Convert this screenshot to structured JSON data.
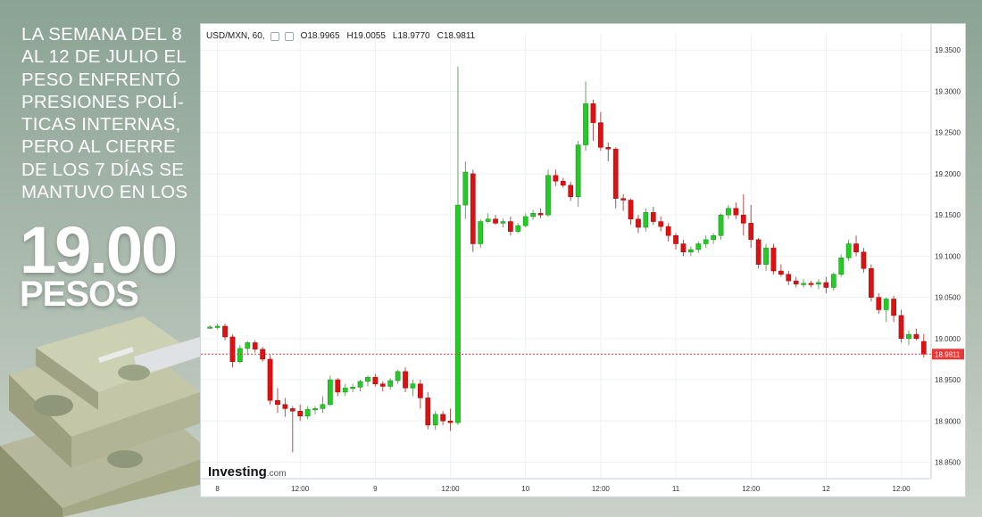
{
  "promo": {
    "lines": [
      "LA SEMANA DEL 8",
      "AL 12 DE JULIO EL",
      "PESO ENFRENTÓ",
      "PRESIONES POLÍ-",
      "TICAS INTERNAS,",
      "PERO AL CIERRE",
      "DE LOS 7 DÍAS SE",
      "MANTUVO EN LOS"
    ],
    "big_number": "19.00",
    "big_unit": "PESOS"
  },
  "chart_header": {
    "symbol": "USD/MXN, 60,",
    "open": "O18.9965",
    "high": "H19.0055",
    "low": "L18.9770",
    "close": "C18.9811"
  },
  "watermark": {
    "brand": "Investing",
    "suffix": ".com"
  },
  "colors": {
    "up": "#22cc22",
    "down": "#dd1111",
    "price_line": "#e8393a",
    "grid": "#eef1f3"
  },
  "chart_data": {
    "type": "candlestick",
    "ylim": [
      18.83,
      19.36
    ],
    "yticks": [
      "19.3500",
      "19.3000",
      "19.2500",
      "19.2000",
      "19.1500",
      "19.1000",
      "19.0500",
      "19.0000",
      "18.9500",
      "18.9000",
      "18.8500"
    ],
    "xtick_labels": [
      {
        "label": "8",
        "bar": 1
      },
      {
        "label": "12:00",
        "bar": 12
      },
      {
        "label": "9",
        "bar": 22
      },
      {
        "label": "12:00",
        "bar": 32
      },
      {
        "label": "10",
        "bar": 42
      },
      {
        "label": "12:00",
        "bar": 52
      },
      {
        "label": "11",
        "bar": 62
      },
      {
        "label": "12:00",
        "bar": 72
      },
      {
        "label": "12",
        "bar": 82
      },
      {
        "label": "12:00",
        "bar": 92
      }
    ],
    "last_price": 18.9811,
    "last_price_label": "18.9811",
    "candles": [
      [
        19.013,
        19.016,
        19.012,
        19.014
      ],
      [
        19.014,
        19.018,
        19.011,
        19.015
      ],
      [
        19.015,
        19.018,
        18.998,
        19.002
      ],
      [
        19.002,
        19.005,
        18.965,
        18.972
      ],
      [
        18.972,
        18.992,
        18.97,
        18.988
      ],
      [
        18.988,
        18.997,
        18.98,
        18.995
      ],
      [
        18.995,
        18.998,
        18.983,
        18.987
      ],
      [
        18.987,
        18.99,
        18.972,
        18.975
      ],
      [
        18.975,
        18.98,
        18.92,
        18.925
      ],
      [
        18.925,
        18.94,
        18.91,
        18.92
      ],
      [
        18.92,
        18.928,
        18.905,
        18.915
      ],
      [
        18.915,
        18.918,
        18.862,
        18.912
      ],
      [
        18.912,
        18.92,
        18.9,
        18.906
      ],
      [
        18.906,
        18.918,
        18.902,
        18.914
      ],
      [
        18.914,
        18.918,
        18.908,
        18.915
      ],
      [
        18.915,
        18.93,
        18.91,
        18.92
      ],
      [
        18.92,
        18.955,
        18.918,
        18.95
      ],
      [
        18.95,
        18.952,
        18.93,
        18.935
      ],
      [
        18.935,
        18.945,
        18.93,
        18.94
      ],
      [
        18.94,
        18.945,
        18.935,
        18.941
      ],
      [
        18.941,
        18.95,
        18.936,
        18.948
      ],
      [
        18.948,
        18.955,
        18.942,
        18.953
      ],
      [
        18.953,
        18.957,
        18.942,
        18.945
      ],
      [
        18.945,
        18.948,
        18.936,
        18.942
      ],
      [
        18.942,
        18.952,
        18.938,
        18.949
      ],
      [
        18.949,
        18.962,
        18.945,
        18.96
      ],
      [
        18.96,
        18.965,
        18.935,
        18.94
      ],
      [
        18.94,
        18.95,
        18.93,
        18.945
      ],
      [
        18.945,
        18.95,
        18.915,
        18.928
      ],
      [
        18.928,
        18.935,
        18.89,
        18.895
      ],
      [
        18.895,
        18.912,
        18.889,
        18.908
      ],
      [
        18.908,
        18.912,
        18.895,
        18.9
      ],
      [
        18.9,
        18.915,
        18.888,
        18.898
      ],
      [
        18.898,
        19.33,
        18.895,
        19.162
      ],
      [
        19.162,
        19.215,
        19.145,
        19.202
      ],
      [
        19.2,
        19.205,
        19.105,
        19.115
      ],
      [
        19.115,
        19.145,
        19.11,
        19.142
      ],
      [
        19.142,
        19.152,
        19.14,
        19.145
      ],
      [
        19.145,
        19.15,
        19.138,
        19.14
      ],
      [
        19.14,
        19.146,
        19.135,
        19.142
      ],
      [
        19.142,
        19.148,
        19.125,
        19.13
      ],
      [
        19.13,
        19.14,
        19.128,
        19.137
      ],
      [
        19.137,
        19.152,
        19.135,
        19.148
      ],
      [
        19.148,
        19.156,
        19.144,
        19.152
      ],
      [
        19.152,
        19.158,
        19.146,
        19.15
      ],
      [
        19.15,
        19.205,
        19.148,
        19.198
      ],
      [
        19.198,
        19.205,
        19.185,
        19.191
      ],
      [
        19.191,
        19.195,
        19.183,
        19.186
      ],
      [
        19.186,
        19.19,
        19.167,
        19.172
      ],
      [
        19.172,
        19.24,
        19.16,
        19.235
      ],
      [
        19.235,
        19.312,
        19.228,
        19.285
      ],
      [
        19.285,
        19.29,
        19.24,
        19.262
      ],
      [
        19.262,
        19.275,
        19.228,
        19.232
      ],
      [
        19.232,
        19.238,
        19.215,
        19.23
      ],
      [
        19.23,
        19.232,
        19.158,
        19.17
      ],
      [
        19.17,
        19.175,
        19.155,
        19.168
      ],
      [
        19.168,
        19.17,
        19.138,
        19.145
      ],
      [
        19.145,
        19.15,
        19.128,
        19.135
      ],
      [
        19.135,
        19.158,
        19.13,
        19.153
      ],
      [
        19.153,
        19.16,
        19.138,
        19.142
      ],
      [
        19.142,
        19.148,
        19.13,
        19.136
      ],
      [
        19.136,
        19.14,
        19.118,
        19.125
      ],
      [
        19.125,
        19.128,
        19.108,
        19.115
      ],
      [
        19.115,
        19.12,
        19.1,
        19.105
      ],
      [
        19.105,
        19.112,
        19.1,
        19.108
      ],
      [
        19.108,
        19.118,
        19.104,
        19.115
      ],
      [
        19.115,
        19.125,
        19.11,
        19.12
      ],
      [
        19.12,
        19.128,
        19.115,
        19.125
      ],
      [
        19.125,
        19.152,
        19.12,
        19.15
      ],
      [
        19.15,
        19.162,
        19.145,
        19.158
      ],
      [
        19.158,
        19.165,
        19.145,
        19.15
      ],
      [
        19.15,
        19.175,
        19.125,
        19.14
      ],
      [
        19.14,
        19.162,
        19.11,
        19.12
      ],
      [
        19.12,
        19.122,
        19.085,
        19.09
      ],
      [
        19.09,
        19.115,
        19.082,
        19.11
      ],
      [
        19.11,
        19.115,
        19.078,
        19.082
      ],
      [
        19.082,
        19.09,
        19.075,
        19.078
      ],
      [
        19.078,
        19.082,
        19.065,
        19.07
      ],
      [
        19.07,
        19.075,
        19.062,
        19.066
      ],
      [
        19.066,
        19.072,
        19.062,
        19.067
      ],
      [
        19.067,
        19.07,
        19.062,
        19.066
      ],
      [
        19.066,
        19.072,
        19.06,
        19.068
      ],
      [
        19.068,
        19.075,
        19.055,
        19.062
      ],
      [
        19.062,
        19.08,
        19.058,
        19.078
      ],
      [
        19.078,
        19.102,
        19.075,
        19.098
      ],
      [
        19.098,
        19.12,
        19.094,
        19.115
      ],
      [
        19.115,
        19.125,
        19.1,
        19.105
      ],
      [
        19.105,
        19.11,
        19.08,
        19.085
      ],
      [
        19.085,
        19.09,
        19.045,
        19.05
      ],
      [
        19.05,
        19.055,
        19.03,
        19.035
      ],
      [
        19.035,
        19.05,
        19.02,
        19.048
      ],
      [
        19.048,
        19.052,
        19.02,
        19.028
      ],
      [
        19.028,
        19.035,
        18.995,
        19.0
      ],
      [
        19.0,
        19.01,
        18.992,
        19.005
      ],
      [
        19.005,
        19.012,
        18.998,
        19.0
      ],
      [
        18.9965,
        19.0055,
        18.977,
        18.9811
      ]
    ]
  }
}
